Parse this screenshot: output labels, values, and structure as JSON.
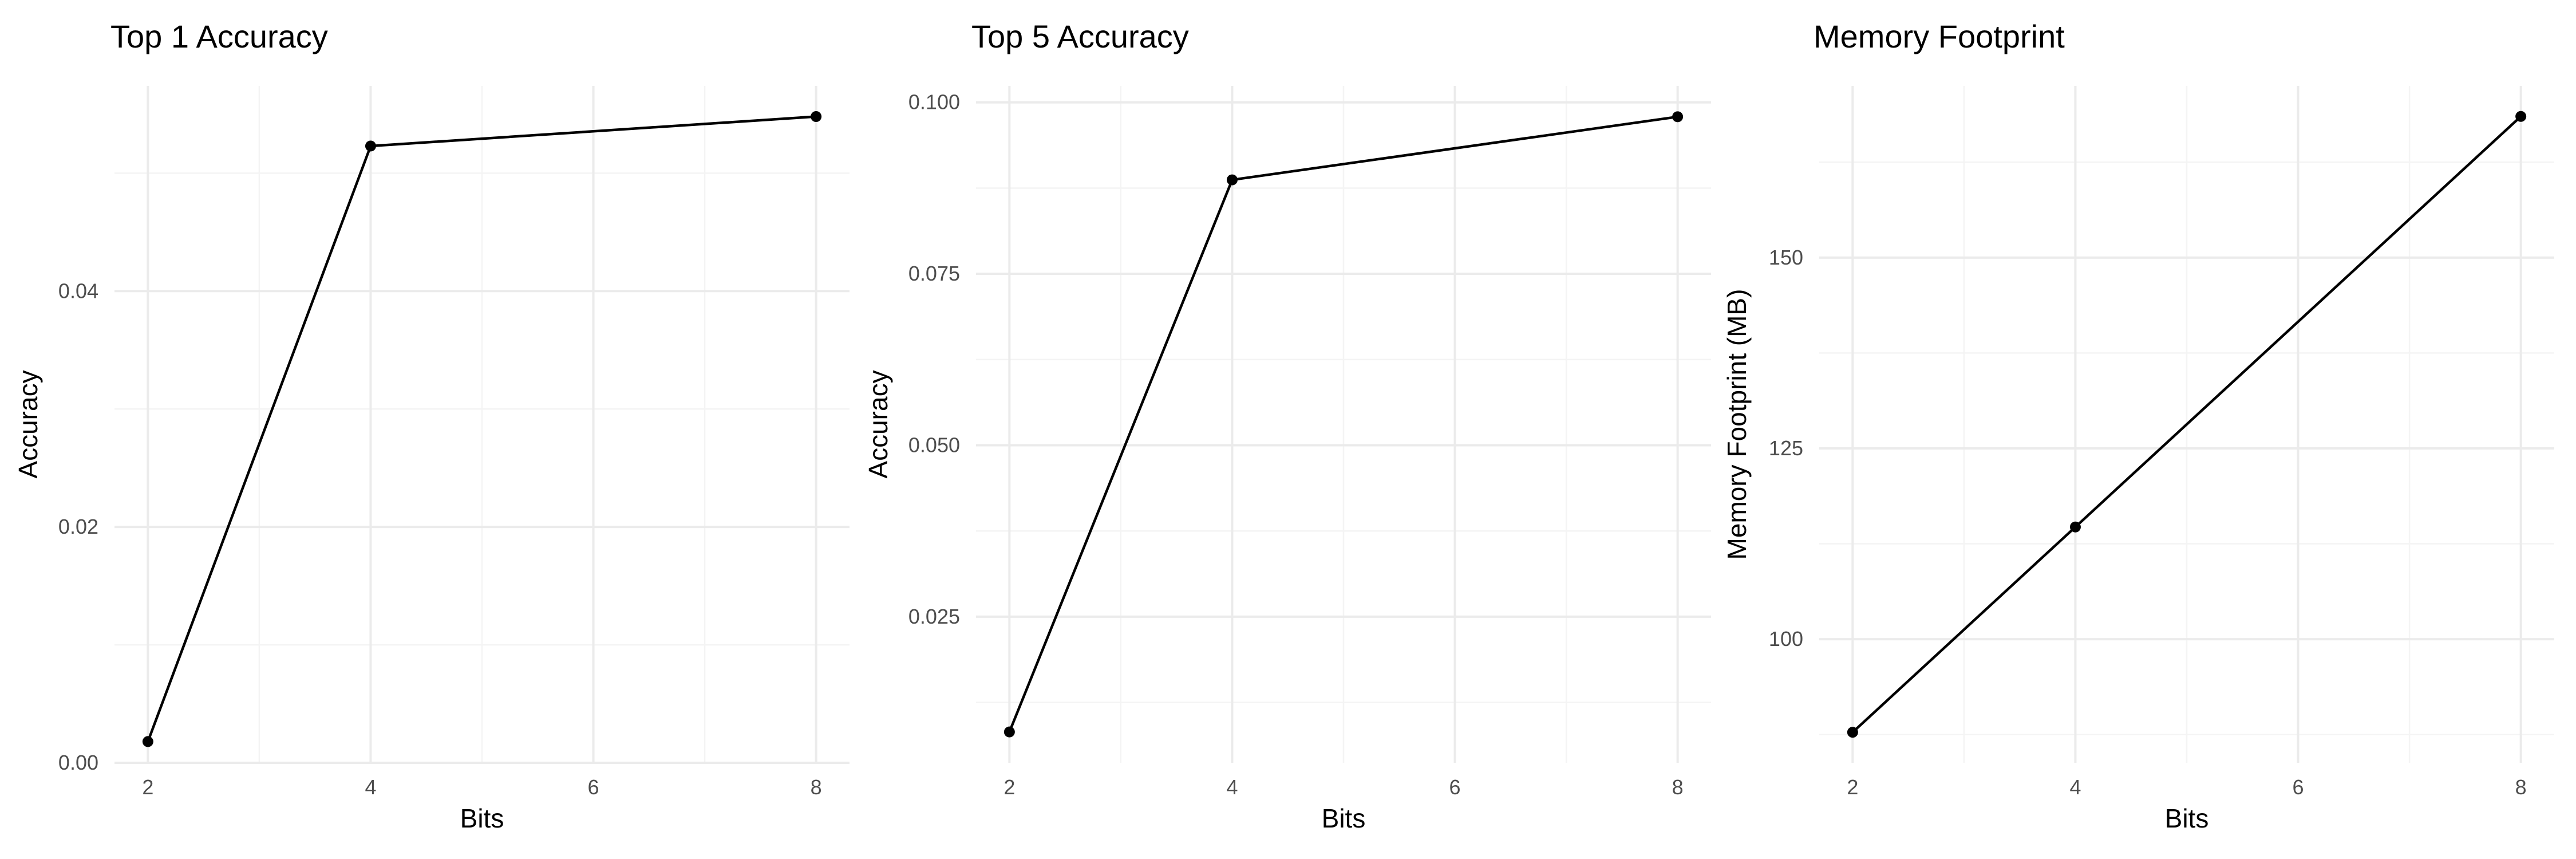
{
  "chart_data": [
    {
      "type": "line",
      "title": "Top 1 Accuracy",
      "xlabel": "Bits",
      "ylabel": "Accuracy",
      "x": [
        2,
        4,
        8
      ],
      "values": [
        0.0018,
        0.0523,
        0.0548
      ],
      "xlim": [
        1.7,
        8.3
      ],
      "ylim": [
        0.0,
        0.0574
      ],
      "xticks": [
        2,
        4,
        6,
        8
      ],
      "xtick_labels": [
        "2",
        "4",
        "6",
        "8"
      ],
      "xminor": [
        3,
        5,
        7
      ],
      "yticks": [
        0.0,
        0.02,
        0.04
      ],
      "ytick_labels": [
        "0.00",
        "0.02",
        "0.04"
      ],
      "yminor": [
        0.01,
        0.03,
        0.05
      ],
      "grid": true,
      "legend": "none"
    },
    {
      "type": "line",
      "title": "Top 5 Accuracy",
      "xlabel": "Bits",
      "ylabel": "Accuracy",
      "x": [
        2,
        4,
        8
      ],
      "values": [
        0.0082,
        0.0887,
        0.0979
      ],
      "xlim": [
        1.7,
        8.3
      ],
      "ylim": [
        0.0037,
        0.1024
      ],
      "xticks": [
        2,
        4,
        6,
        8
      ],
      "xtick_labels": [
        "2",
        "4",
        "6",
        "8"
      ],
      "xminor": [
        3,
        5,
        7
      ],
      "yticks": [
        0.025,
        0.05,
        0.075,
        0.1
      ],
      "ytick_labels": [
        "0.025",
        "0.050",
        "0.075",
        "0.100"
      ],
      "yminor": [
        0.0125,
        0.0375,
        0.0625,
        0.0875
      ],
      "grid": true,
      "legend": "none"
    },
    {
      "type": "line",
      "title": "Memory Footprint",
      "xlabel": "Bits",
      "ylabel": "Memory Footprint (MB)",
      "x": [
        2,
        4,
        8
      ],
      "values": [
        87.8,
        114.7,
        168.5
      ],
      "xlim": [
        1.7,
        8.3
      ],
      "ylim": [
        83.8,
        172.5
      ],
      "xticks": [
        2,
        4,
        6,
        8
      ],
      "xtick_labels": [
        "2",
        "4",
        "6",
        "8"
      ],
      "xminor": [
        3,
        5,
        7
      ],
      "yticks": [
        100,
        125,
        150
      ],
      "ytick_labels": [
        "100",
        "125",
        "150"
      ],
      "yminor": [
        87.5,
        112.5,
        137.5,
        162.5
      ],
      "grid": true,
      "legend": "none"
    }
  ]
}
